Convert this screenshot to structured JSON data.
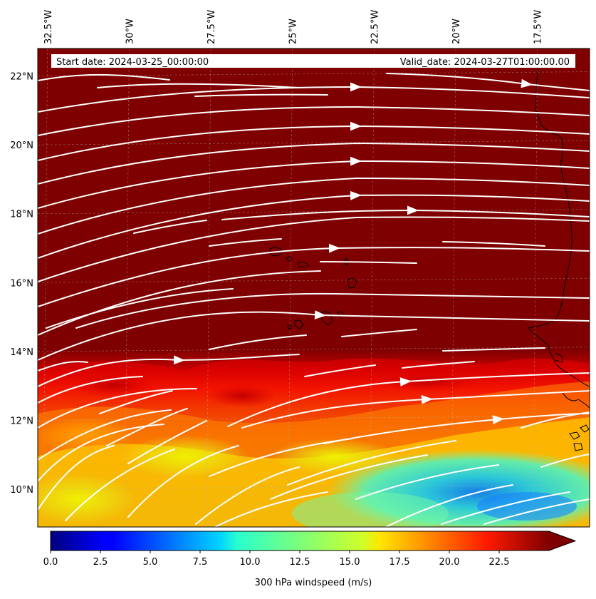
{
  "header": {
    "start_date": "Start date: 2024-03-25_00:00:00",
    "valid_date": "Valid_date: 2024-03-27T01:00:00.00"
  },
  "map": {
    "lon_range": [
      -32.8,
      -15.9
    ],
    "lat_range": [
      8.9,
      22.8
    ],
    "lon_ticks": [
      {
        "value": -32.5,
        "label": "32.5°W"
      },
      {
        "value": -30.0,
        "label": "30°W"
      },
      {
        "value": -27.5,
        "label": "27.5°W"
      },
      {
        "value": -25.0,
        "label": "25°W"
      },
      {
        "value": -22.5,
        "label": "22.5°W"
      },
      {
        "value": -20.0,
        "label": "20°W"
      },
      {
        "value": -17.5,
        "label": "17.5°W"
      }
    ],
    "lat_ticks": [
      {
        "value": 22,
        "label": "22°N"
      },
      {
        "value": 20,
        "label": "20°N"
      },
      {
        "value": 18,
        "label": "18°N"
      },
      {
        "value": 16,
        "label": "16°N"
      },
      {
        "value": 14,
        "label": "14°N"
      },
      {
        "value": 12,
        "label": "12°N"
      },
      {
        "value": 10,
        "label": "10°N"
      }
    ],
    "gridlines": true,
    "field": "300 hPa windspeed",
    "streamlines": "white, flowing west to east"
  },
  "colorbar": {
    "label": "300 hPa windspeed (m/s)",
    "min": 0,
    "max": 25,
    "extend": "max",
    "colormap": "jet",
    "ticks": [
      {
        "value": 0,
        "label": "0.0"
      },
      {
        "value": 2.5,
        "label": "2.5"
      },
      {
        "value": 5,
        "label": "5.0"
      },
      {
        "value": 7.5,
        "label": "7.5"
      },
      {
        "value": 10,
        "label": "10.0"
      },
      {
        "value": 12.5,
        "label": "12.5"
      },
      {
        "value": 15,
        "label": "15.0"
      },
      {
        "value": 17.5,
        "label": "17.5"
      },
      {
        "value": 20,
        "label": "20.0"
      },
      {
        "value": 22.5,
        "label": "22.5"
      }
    ]
  }
}
